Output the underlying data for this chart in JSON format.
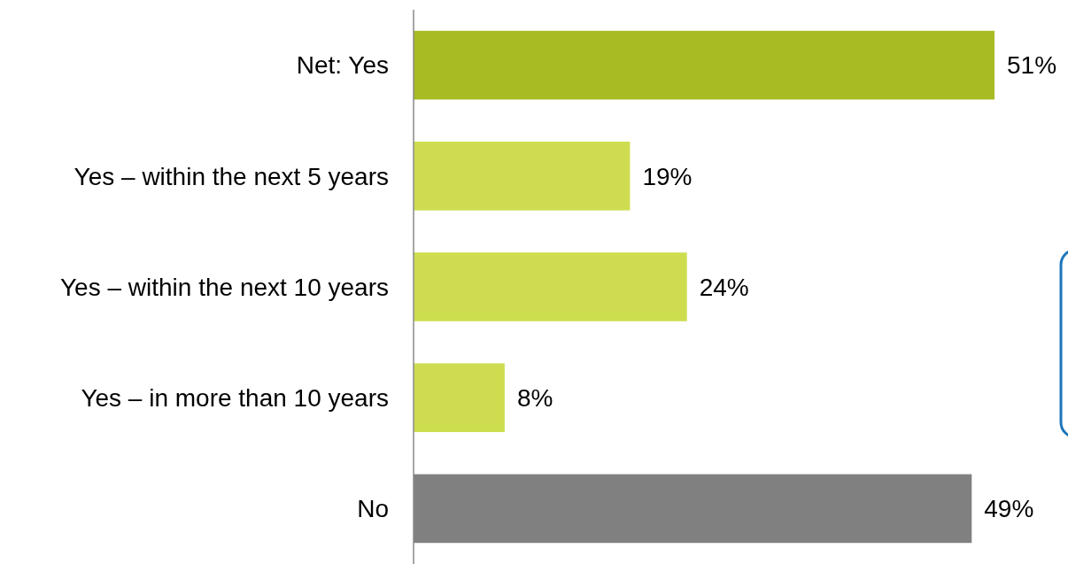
{
  "chart_data": {
    "type": "bar",
    "orientation": "horizontal",
    "categories": [
      "Net: Yes",
      "Yes – within the next 5 years",
      "Yes – within the next 10 years",
      "Yes – in more than 10 years",
      "No"
    ],
    "values": [
      51,
      19,
      24,
      8,
      49
    ],
    "colors": [
      "#a9bb23",
      "#cddd4f",
      "#cddd4f",
      "#cddd4f",
      "#808080"
    ],
    "value_labels": [
      "51%",
      "19%",
      "24%",
      "8%",
      "49%"
    ]
  }
}
